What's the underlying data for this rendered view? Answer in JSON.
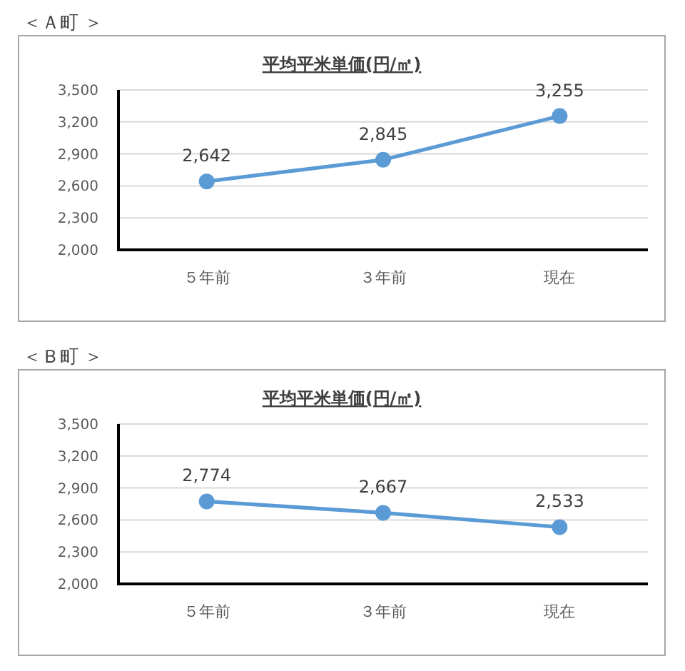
{
  "chart_data": [
    {
      "type": "line",
      "title": "平均平米単価(円/㎡)",
      "annotations": [
        "＜Ａ町 ＞"
      ],
      "categories": [
        "５年前",
        "３年前",
        "現在"
      ],
      "values": [
        2642,
        2845,
        3255
      ],
      "value_labels": [
        "2,642",
        "2,845",
        "3,255"
      ],
      "color": "#5b9bd5",
      "ylim": [
        2000,
        3500
      ],
      "yticks": [
        {
          "value": 2000,
          "label": "2,000"
        },
        {
          "value": 2300,
          "label": "2,300"
        },
        {
          "value": 2600,
          "label": "2,600"
        },
        {
          "value": 2900,
          "label": "2,900"
        },
        {
          "value": 3200,
          "label": "3,200"
        },
        {
          "value": 3500,
          "label": "3,500"
        }
      ],
      "grid": "y",
      "marker": "circle",
      "line_style": "solid"
    },
    {
      "type": "line",
      "title": "平均平米単価(円/㎡)",
      "annotations": [
        "＜Ｂ町 ＞"
      ],
      "categories": [
        "５年前",
        "３年前",
        "現在"
      ],
      "values": [
        2774,
        2667,
        2533
      ],
      "value_labels": [
        "2,774",
        "2,667",
        "2,533"
      ],
      "color": "#5b9bd5",
      "ylim": [
        2000,
        3500
      ],
      "yticks": [
        {
          "value": 2000,
          "label": "2,000"
        },
        {
          "value": 2300,
          "label": "2,300"
        },
        {
          "value": 2600,
          "label": "2,600"
        },
        {
          "value": 2900,
          "label": "2,900"
        },
        {
          "value": 3200,
          "label": "3,200"
        },
        {
          "value": 3500,
          "label": "3,500"
        }
      ],
      "grid": "y",
      "marker": "circle",
      "line_style": "solid"
    }
  ]
}
